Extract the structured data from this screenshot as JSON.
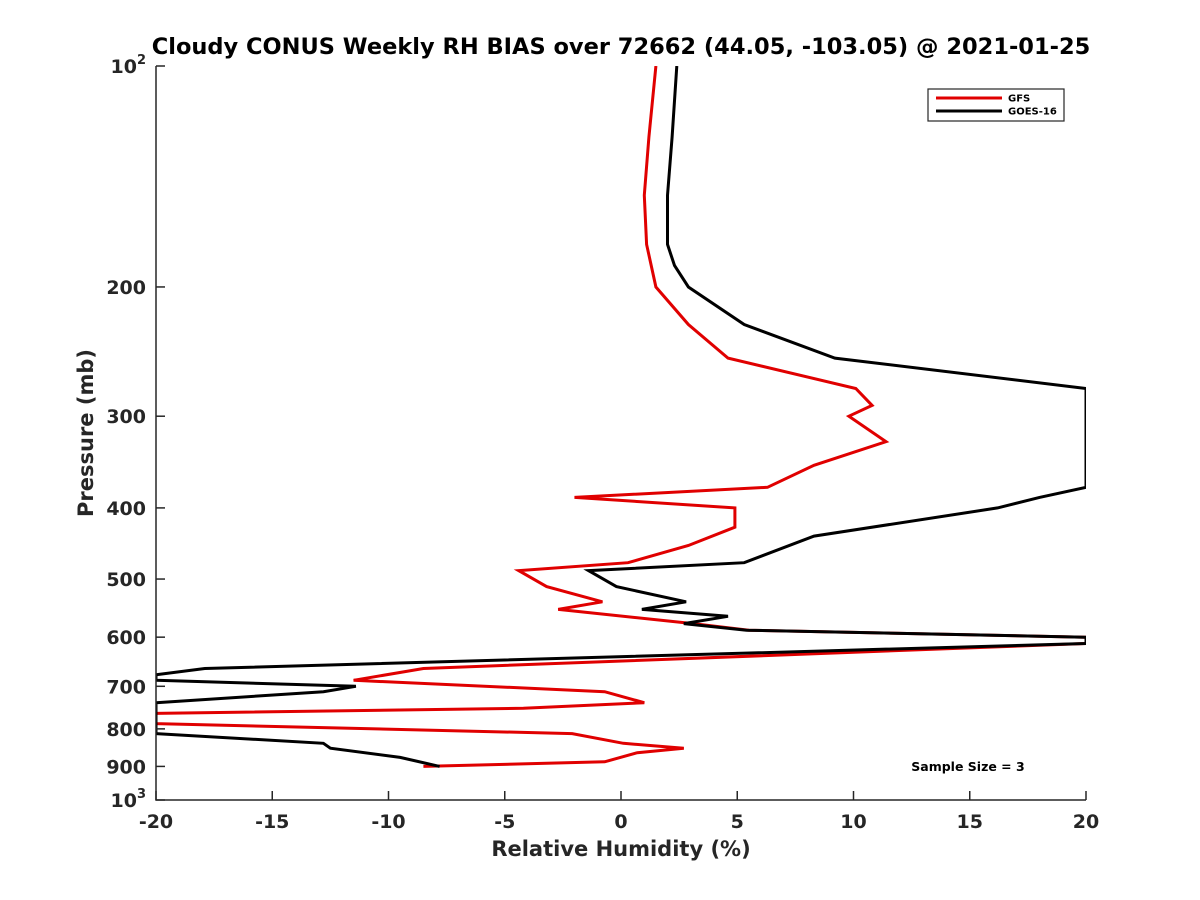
{
  "chart_data": {
    "type": "line",
    "title": "Cloudy CONUS Weekly RH BIAS over 72662 (44.05, -103.05) @ 2021-01-25",
    "xlabel": "Relative Humidity (%)",
    "ylabel": "Pressure (mb)",
    "xlim": [
      -20,
      20
    ],
    "ylim": [
      100,
      1000
    ],
    "y_scale": "log",
    "y_reversed": true,
    "grid": false,
    "legend_position": "top-right",
    "x_ticks": [
      -20,
      -15,
      -10,
      -5,
      0,
      5,
      10,
      15,
      20
    ],
    "x_tick_labels": [
      "-20",
      "-15",
      "-10",
      "-5",
      "0",
      "5",
      "10",
      "15",
      "20"
    ],
    "y_ticks": [
      100,
      200,
      300,
      400,
      500,
      600,
      700,
      800,
      900,
      1000
    ],
    "y_tick_labels": [
      {
        "base": "10",
        "exp": "2"
      },
      {
        "base": "200",
        "exp": ""
      },
      {
        "base": "300",
        "exp": ""
      },
      {
        "base": "400",
        "exp": ""
      },
      {
        "base": "500",
        "exp": ""
      },
      {
        "base": "600",
        "exp": ""
      },
      {
        "base": "700",
        "exp": ""
      },
      {
        "base": "800",
        "exp": ""
      },
      {
        "base": "900",
        "exp": ""
      },
      {
        "base": "10",
        "exp": "3"
      }
    ],
    "annotation": "Sample Size = 3",
    "series": [
      {
        "name": "GFS",
        "color": "#e00000",
        "points": [
          [
            1.5,
            100
          ],
          [
            1.2,
            125
          ],
          [
            1.0,
            150
          ],
          [
            1.1,
            175
          ],
          [
            1.5,
            200
          ],
          [
            2.9,
            225
          ],
          [
            4.6,
            250
          ],
          [
            10.1,
            275
          ],
          [
            10.8,
            290
          ],
          [
            9.8,
            300
          ],
          [
            11.4,
            325
          ],
          [
            8.3,
            350
          ],
          [
            6.3,
            375
          ],
          [
            -2.0,
            387
          ],
          [
            4.9,
            400
          ],
          [
            4.9,
            425
          ],
          [
            2.9,
            450
          ],
          [
            0.3,
            475
          ],
          [
            -4.4,
            487
          ],
          [
            -3.2,
            512
          ],
          [
            -0.8,
            537
          ],
          [
            -2.7,
            550
          ],
          [
            3.1,
            575
          ],
          [
            5.5,
            587
          ],
          [
            20,
            600
          ],
          [
            20,
            612
          ],
          [
            -8.5,
            662
          ],
          [
            -11.5,
            687
          ],
          [
            -0.7,
            712
          ],
          [
            1.0,
            737
          ],
          [
            -4.2,
            750
          ],
          [
            -20,
            762
          ],
          [
            -20,
            787
          ],
          [
            -2.1,
            812
          ],
          [
            0.1,
            837
          ],
          [
            2.7,
            850
          ],
          [
            0.7,
            862
          ],
          [
            -0.7,
            887
          ],
          [
            -8.5,
            900
          ]
        ]
      },
      {
        "name": "GOES-16",
        "color": "#000000",
        "points": [
          [
            2.4,
            100
          ],
          [
            2.2,
            125
          ],
          [
            2.0,
            150
          ],
          [
            2.0,
            175
          ],
          [
            2.3,
            187
          ],
          [
            2.9,
            200
          ],
          [
            5.3,
            225
          ],
          [
            9.2,
            250
          ],
          [
            20,
            275
          ],
          [
            20,
            375
          ],
          [
            18.0,
            387
          ],
          [
            16.2,
            400
          ],
          [
            8.3,
            437
          ],
          [
            5.3,
            475
          ],
          [
            -1.4,
            487
          ],
          [
            -0.2,
            512
          ],
          [
            2.8,
            537
          ],
          [
            0.9,
            550
          ],
          [
            4.6,
            562
          ],
          [
            2.7,
            575
          ],
          [
            5.4,
            587
          ],
          [
            20,
            600
          ],
          [
            20,
            612
          ],
          [
            -17.9,
            662
          ],
          [
            -20,
            675
          ],
          [
            -20,
            687
          ],
          [
            -11.4,
            700
          ],
          [
            -12.8,
            712
          ],
          [
            -20,
            737
          ],
          [
            -20,
            812
          ],
          [
            -12.8,
            837
          ],
          [
            -12.5,
            850
          ],
          [
            -9.5,
            875
          ],
          [
            -7.8,
            900
          ]
        ]
      }
    ]
  }
}
